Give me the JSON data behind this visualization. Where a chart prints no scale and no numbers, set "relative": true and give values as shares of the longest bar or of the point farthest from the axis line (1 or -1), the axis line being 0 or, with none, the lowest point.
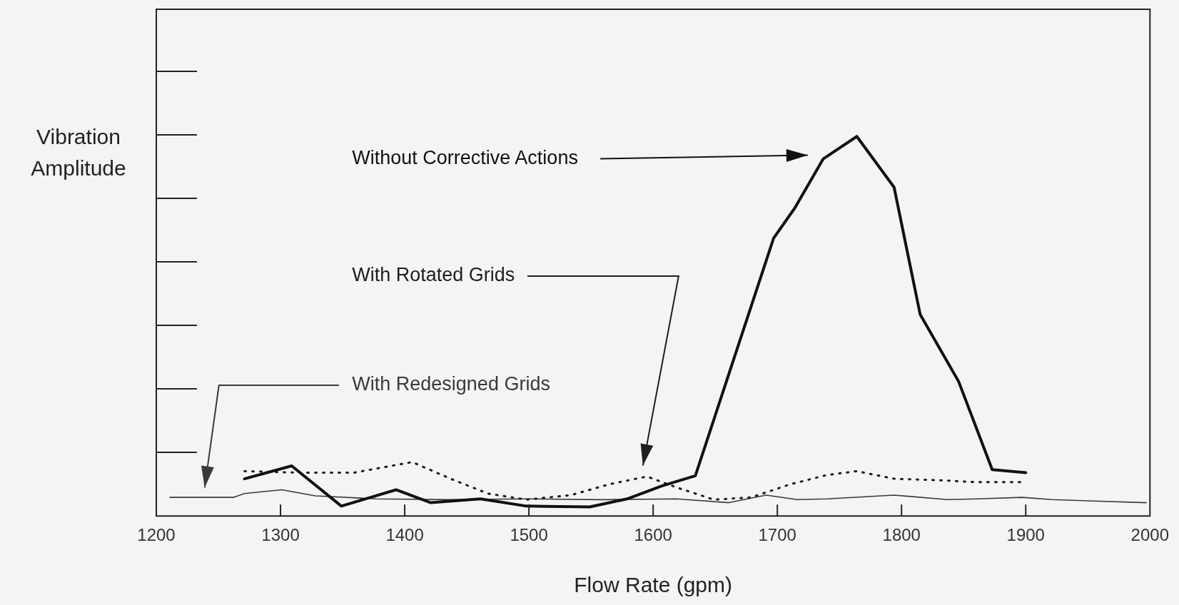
{
  "chart_data": {
    "type": "line",
    "relative": true,
    "xlabel": "Flow Rate (gpm)",
    "ylabel": "Vibration Amplitude",
    "xlim": [
      1200,
      2000
    ],
    "xticks": [
      1200,
      1300,
      1400,
      1500,
      1600,
      1700,
      1800,
      1900,
      2000
    ],
    "grid": false,
    "legend": false,
    "marker": "none",
    "series": [
      {
        "name": "Without Corrective Actions",
        "color": "#111111",
        "line_style": "solid",
        "x": [
          1271,
          1309,
          1349,
          1393,
          1421,
          1461,
          1498,
          1549,
          1579,
          1607,
          1634,
          1697,
          1714,
          1737,
          1764,
          1794,
          1815,
          1846,
          1873,
          1900
        ],
        "values": [
          0.098,
          0.132,
          0.026,
          0.069,
          0.035,
          0.045,
          0.026,
          0.024,
          0.045,
          0.079,
          0.106,
          0.732,
          0.811,
          0.941,
          1,
          0.866,
          0.531,
          0.354,
          0.122,
          0.114
        ]
      },
      {
        "name": "With Rotated Grids",
        "color": "#1e1e1e",
        "line_style": "dotted",
        "x": [
          1271,
          1316,
          1359,
          1406,
          1437,
          1467,
          1498,
          1534,
          1564,
          1595,
          1619,
          1649,
          1679,
          1710,
          1740,
          1764,
          1794,
          1831,
          1861,
          1897
        ],
        "values": [
          0.118,
          0.114,
          0.114,
          0.142,
          0.098,
          0.059,
          0.043,
          0.055,
          0.083,
          0.104,
          0.075,
          0.043,
          0.049,
          0.083,
          0.108,
          0.118,
          0.098,
          0.094,
          0.089,
          0.089
        ]
      },
      {
        "name": "With Redesigned Grids",
        "color": "#3a3a3a",
        "line_style": "solid",
        "x": [
          1211,
          1262,
          1271,
          1301,
          1328,
          1377,
          1437,
          1498,
          1558,
          1619,
          1661,
          1691,
          1716,
          1740,
          1794,
          1837,
          1861,
          1897,
          1921,
          1997
        ],
        "values": [
          0.049,
          0.049,
          0.059,
          0.069,
          0.053,
          0.045,
          0.043,
          0.045,
          0.043,
          0.045,
          0.035,
          0.055,
          0.043,
          0.045,
          0.055,
          0.043,
          0.045,
          0.049,
          0.043,
          0.035
        ]
      }
    ]
  }
}
